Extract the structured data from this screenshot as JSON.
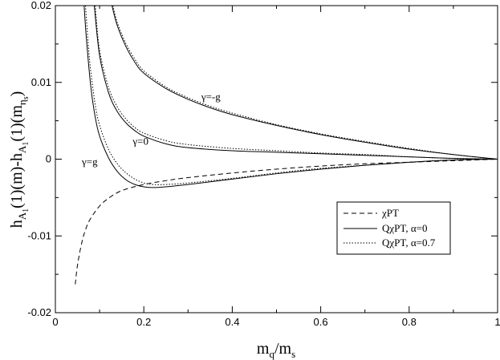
{
  "chart_data": {
    "type": "line",
    "xlabel": "m_q/m_s",
    "ylabel": "h_A1(1)(m)-h_A1(1)(m_ηs)",
    "xlim": [
      0,
      1
    ],
    "ylim": [
      -0.02,
      0.02
    ],
    "x_ticks": [
      "0",
      "0.2",
      "0.4",
      "0.6",
      "0.8",
      "1"
    ],
    "y_ticks": [
      "-0.02",
      "-0.01",
      "0",
      "0.01",
      "0.02"
    ],
    "grid": false,
    "legend_position": "lower-right",
    "legend": [
      {
        "label": "χPT",
        "style": "dashed"
      },
      {
        "label": "QχPT, α=0",
        "style": "solid"
      },
      {
        "label": "QχPT, α=0.7",
        "style": "dotted"
      }
    ],
    "annotations": [
      {
        "text": "γ=-g",
        "x": 0.33,
        "y": 0.0077
      },
      {
        "text": "γ=0",
        "x": 0.175,
        "y": 0.0019
      },
      {
        "text": "γ=g",
        "x": 0.06,
        "y": -0.0008
      }
    ],
    "series": [
      {
        "style": "dashed",
        "group": "chiPT",
        "x": [
          0.045,
          0.05,
          0.06,
          0.07,
          0.08,
          0.1,
          0.12,
          0.15,
          0.2,
          0.25,
          0.3,
          0.4,
          0.5,
          0.6,
          0.7,
          0.8,
          0.9,
          1.0
        ],
        "y": [
          -0.0163,
          -0.0138,
          -0.0108,
          -0.0089,
          -0.0077,
          -0.0061,
          -0.0051,
          -0.0041,
          -0.0033,
          -0.0028,
          -0.0024,
          -0.0018,
          -0.0013,
          -0.0009,
          -0.0006,
          -0.0004,
          -0.0002,
          0.0
        ]
      },
      {
        "style": "solid",
        "group": "alpha0",
        "gamma": "γ=-g",
        "x": [
          0.128,
          0.14,
          0.16,
          0.18,
          0.2,
          0.25,
          0.3,
          0.35,
          0.4,
          0.5,
          0.6,
          0.7,
          0.8,
          0.9,
          1.0
        ],
        "y": [
          0.02,
          0.0174,
          0.0146,
          0.0126,
          0.0112,
          0.0092,
          0.0078,
          0.0067,
          0.0058,
          0.0044,
          0.0032,
          0.0022,
          0.0013,
          0.0006,
          0.0
        ]
      },
      {
        "style": "dotted",
        "group": "alpha07",
        "gamma": "γ=-g",
        "x": [
          0.13,
          0.14,
          0.16,
          0.18,
          0.2,
          0.25,
          0.3,
          0.35,
          0.4,
          0.5,
          0.6,
          0.7,
          0.8,
          0.9,
          1.0
        ],
        "y": [
          0.02,
          0.0178,
          0.015,
          0.013,
          0.0115,
          0.0094,
          0.008,
          0.0069,
          0.006,
          0.0045,
          0.0033,
          0.0023,
          0.0014,
          0.0006,
          0.0
        ]
      },
      {
        "style": "solid",
        "group": "alpha0",
        "gamma": "γ=0",
        "x": [
          0.088,
          0.1,
          0.12,
          0.14,
          0.16,
          0.18,
          0.2,
          0.25,
          0.3,
          0.4,
          0.5,
          0.6,
          0.7,
          0.8,
          0.9,
          1.0
        ],
        "y": [
          0.02,
          0.0135,
          0.0087,
          0.0062,
          0.0047,
          0.0037,
          0.003,
          0.002,
          0.0015,
          0.0011,
          0.0009,
          0.0007,
          0.0005,
          0.0003,
          0.0001,
          0.0
        ]
      },
      {
        "style": "dotted",
        "group": "alpha07",
        "gamma": "γ=0",
        "x": [
          0.09,
          0.1,
          0.12,
          0.14,
          0.16,
          0.18,
          0.2,
          0.25,
          0.3,
          0.4,
          0.5,
          0.6,
          0.7,
          0.8,
          0.9,
          1.0
        ],
        "y": [
          0.02,
          0.0142,
          0.0094,
          0.0068,
          0.0052,
          0.0041,
          0.0034,
          0.0024,
          0.0019,
          0.0014,
          0.0011,
          0.0008,
          0.0006,
          0.0003,
          0.0001,
          0.0
        ]
      },
      {
        "style": "solid",
        "group": "alpha0",
        "gamma": "γ=g",
        "x": [
          0.065,
          0.07,
          0.08,
          0.09,
          0.1,
          0.12,
          0.14,
          0.16,
          0.18,
          0.2,
          0.22,
          0.25,
          0.3,
          0.4,
          0.5,
          0.6,
          0.7,
          0.8,
          0.9,
          1.0
        ],
        "y": [
          0.02,
          0.0158,
          0.0095,
          0.0055,
          0.003,
          0.0002,
          -0.0016,
          -0.0027,
          -0.0033,
          -0.0036,
          -0.0037,
          -0.0036,
          -0.0033,
          -0.0026,
          -0.0019,
          -0.0013,
          -0.0008,
          -0.0004,
          -0.0001,
          0.0
        ]
      },
      {
        "style": "dotted",
        "group": "alpha07",
        "gamma": "γ=g",
        "x": [
          0.068,
          0.075,
          0.08,
          0.09,
          0.1,
          0.12,
          0.14,
          0.16,
          0.18,
          0.2,
          0.22,
          0.25,
          0.3,
          0.4,
          0.5,
          0.6,
          0.7,
          0.8,
          0.9,
          1.0
        ],
        "y": [
          0.02,
          0.0145,
          0.0115,
          0.0071,
          0.0044,
          0.0013,
          -0.0006,
          -0.0018,
          -0.0026,
          -0.0031,
          -0.0033,
          -0.0033,
          -0.0031,
          -0.0025,
          -0.0018,
          -0.0012,
          -0.0008,
          -0.0004,
          -0.0001,
          0.0
        ]
      }
    ]
  }
}
